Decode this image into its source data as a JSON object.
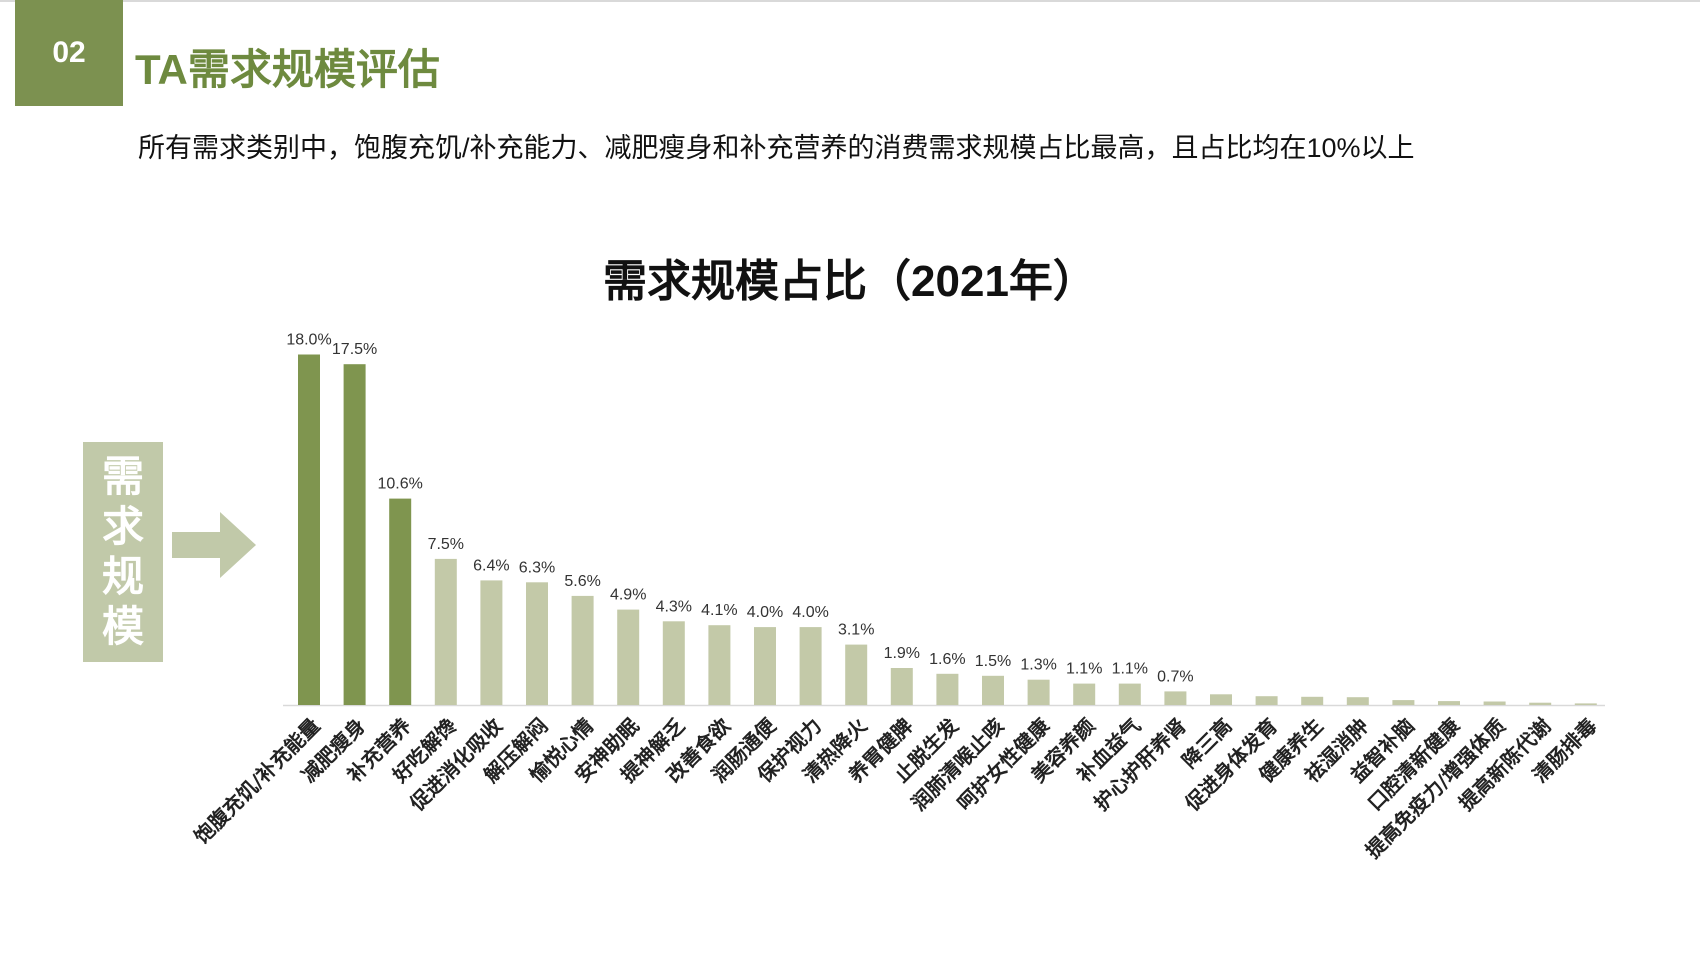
{
  "header": {
    "section_number": "02",
    "title": "TA需求规模评估",
    "subtitle": "所有需求类别中，饱腹充饥/补充能力、减肥瘦身和补充营养的消费需求规模占比最高，且占比均在10%以上"
  },
  "side_label": {
    "chars": [
      "需",
      "求",
      "规",
      "模"
    ]
  },
  "colors": {
    "accent": "#7c9150",
    "title_green": "#6e8a3f",
    "bar_dark": "#7f954f",
    "bar_light": "#c3c9a8",
    "side_box": "#c1c9a9"
  },
  "chart_data": {
    "type": "bar",
    "title": "需求规模占比（2021年）",
    "xlabel": "",
    "ylabel": "",
    "categories": [
      "饱腹充饥/补充能量",
      "减肥瘦身",
      "补充营养",
      "好吃解馋",
      "促进消化吸收",
      "解压解闷",
      "愉悦心情",
      "安神助眠",
      "提神解乏",
      "改善食欲",
      "润肠通便",
      "保护视力",
      "清热降火",
      "养胃健脾",
      "止脱生发",
      "润肺清喉止咳",
      "呵护女性健康",
      "美容养颜",
      "补血益气",
      "护心护肝养肾",
      "降三高",
      "促进身体发育",
      "健康养生",
      "祛湿消肿",
      "益智补脑",
      "口腔清新健康",
      "提高免疫力/增强体质",
      "提高新陈代谢",
      "清肠排毒"
    ],
    "values": [
      18.0,
      17.5,
      10.6,
      7.5,
      6.4,
      6.3,
      5.6,
      4.9,
      4.3,
      4.1,
      4.0,
      4.0,
      3.1,
      1.9,
      1.6,
      1.5,
      1.3,
      1.1,
      1.1,
      0.7,
      0.55,
      0.45,
      0.42,
      0.4,
      0.25,
      0.2,
      0.18,
      0.12,
      0.08
    ],
    "labels": [
      "18.0%",
      "17.5%",
      "10.6%",
      "7.5%",
      "6.4%",
      "6.3%",
      "5.6%",
      "4.9%",
      "4.3%",
      "4.1%",
      "4.0%",
      "4.0%",
      "3.1%",
      "1.9%",
      "1.6%",
      "1.5%",
      "1.3%",
      "1.1%",
      "1.1%",
      "0.7%",
      "",
      "",
      "",
      "",
      "",
      "",
      "",
      "",
      ""
    ],
    "highlight_count": 3,
    "ylim": [
      0,
      19
    ],
    "grid": false,
    "legend": "none"
  }
}
